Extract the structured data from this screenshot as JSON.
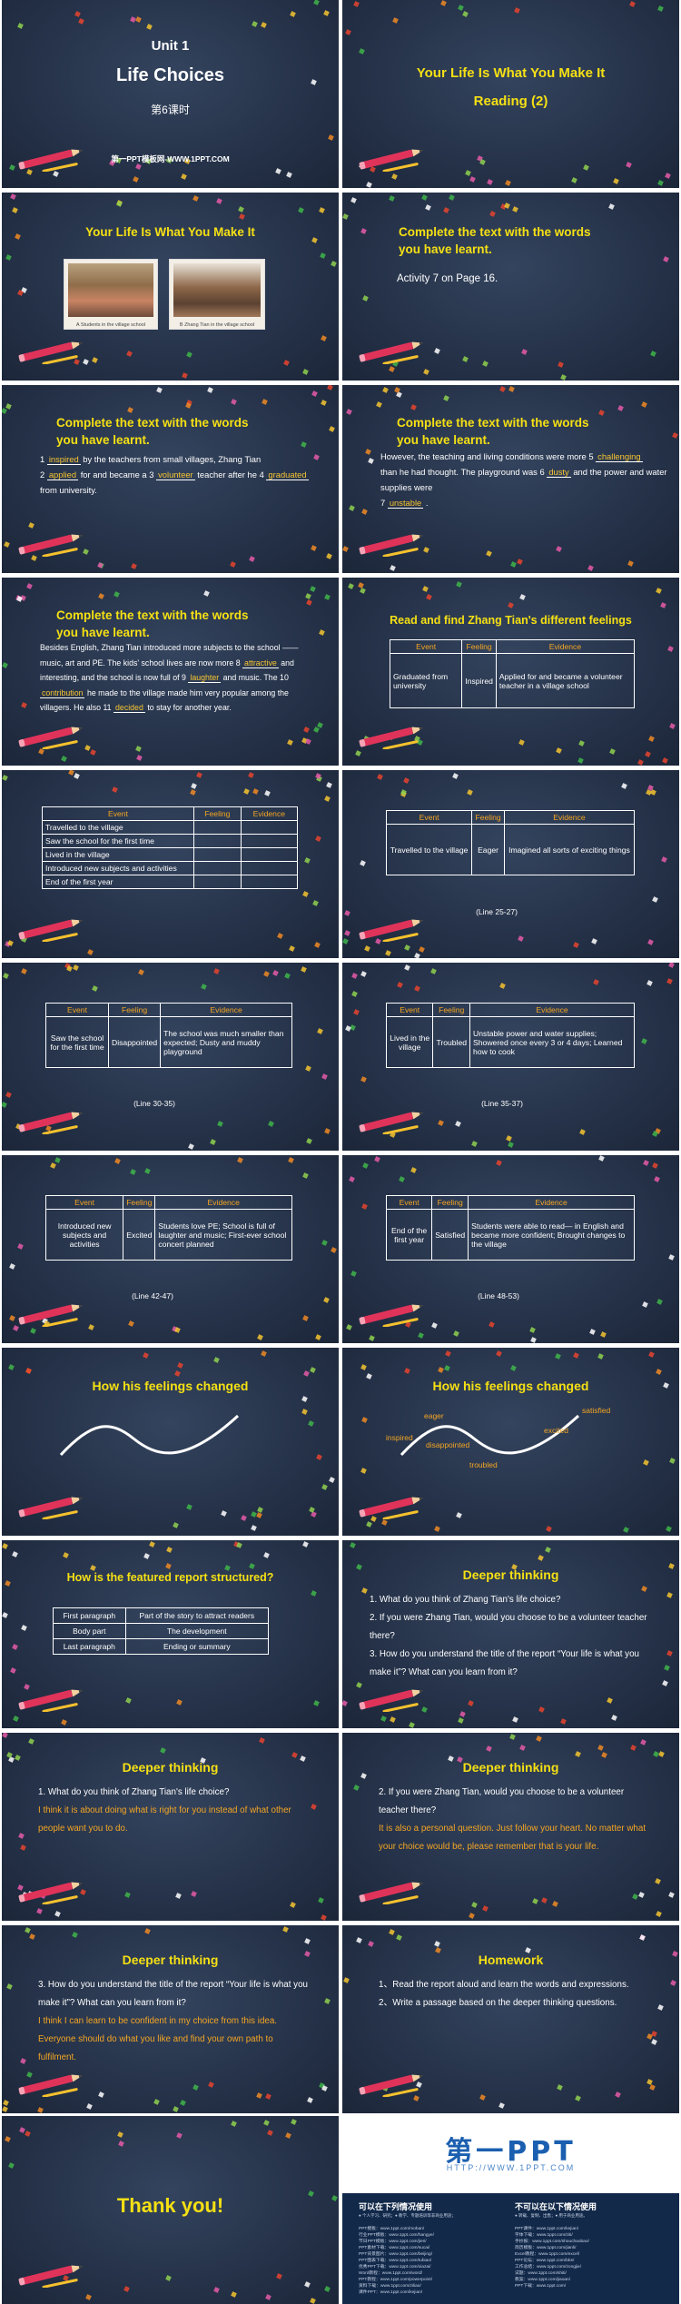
{
  "slides": {
    "s1": {
      "unit": "Unit 1",
      "title": "Life Choices",
      "subtitle": "第6课时",
      "site": "第一PPT模板网-WWW.1PPT.COM"
    },
    "s2": {
      "title_line1": "Your Life Is What You Make It",
      "title_line2": "Reading (2)"
    },
    "s3": {
      "title": "Your Life Is What You Make It",
      "photo1_caption": "A  Students in the village school",
      "photo2_caption": "B  Zhang Tian in the village school"
    },
    "s4": {
      "title_line1": "Complete the text with the words",
      "title_line2": "you have learnt.",
      "text": "Activity 7 on Page 16."
    },
    "s5": {
      "title_line1": "Complete the text with the words",
      "title_line2": "you have learnt.",
      "p1": "1",
      "a1": "inspired",
      "p2": "by the teachers from small villages, Zhang Tian",
      "p3": "2",
      "a2": "applied",
      "p4": "for and became a",
      "p5": "3",
      "a3": "volunteer",
      "p6": "teacher after he",
      "p7": "4",
      "a4": "graduated",
      "p8": "from university."
    },
    "s6": {
      "title_line1": "Complete the text with the words",
      "title_line2": "you have learnt.",
      "p1": "However, the teaching and living conditions were more",
      "p2": "5",
      "a5": "challenging",
      "p3": "than he had thought. The playground was",
      "p4": "6",
      "a6": "dusty",
      "p5": "and the power and water supplies were",
      "p6": "7",
      "a7": "unstable",
      "p7": "."
    },
    "s7": {
      "title_line1": "Complete the text with the words",
      "title_line2": "you have learnt.",
      "p1": "Besides English, Zhang Tian introduced more subjects to the school —— music, art and PE. The kids' school lives are now more",
      "p2": "8",
      "a8": "attractive",
      "p3": "and interesting, and the school is now full of",
      "p4": "9",
      "a9": "laughter",
      "p5": "and music. The",
      "p6": "10",
      "a10": "contribution",
      "p7": "he made to the village made him very popular among the villagers. He also",
      "p8": "11",
      "a11": "decided",
      "p9": "to stay for another year."
    },
    "s8": {
      "title": "Read and find Zhang Tian's different feelings",
      "headers": [
        "Event",
        "Feeling",
        "Evidence"
      ],
      "row": [
        "Graduated from university",
        "Inspired",
        "Applied for and became a volunteer teacher in a village school"
      ]
    },
    "s9": {
      "headers": [
        "Event",
        "Feeling",
        "Evidence"
      ],
      "rows": [
        "Travelled to the village",
        "Saw the school for the first time",
        "Lived in the village",
        "Introduced new subjects and activities",
        "End of the first year"
      ]
    },
    "s10": {
      "headers": [
        "Event",
        "Feeling",
        "Evidence"
      ],
      "row": [
        "Travelled to the village",
        "Eager",
        "Imagined all sorts of exciting things"
      ],
      "lines": "(Line 25-27)"
    },
    "s11": {
      "headers": [
        "Event",
        "Feeling",
        "Evidence"
      ],
      "row": [
        "Saw the school for the first time",
        "Disappointed",
        "The school was much smaller than expected; Dusty and muddy playground"
      ],
      "lines": "(Line 30-35)"
    },
    "s12": {
      "headers": [
        "Event",
        "Feeling",
        "Evidence"
      ],
      "row": [
        "Lived in the village",
        "Troubled",
        "Unstable power and water supplies; Showered once every 3 or 4 days; Learned how to cook"
      ],
      "lines": "(Line 35-37)"
    },
    "s13": {
      "headers": [
        "Event",
        "Feeling",
        "Evidence"
      ],
      "row": [
        "Introduced new subjects and activities",
        "Excited",
        "Students love PE; School is full of laughter and music; First-ever school concert planned"
      ],
      "lines": "(Line 42-47)"
    },
    "s14": {
      "headers": [
        "Event",
        "Feeling",
        "Evidence"
      ],
      "row": [
        "End of the first year",
        "Satisfied",
        "Students were able to read— in English and became more confident; Brought changes to the village"
      ],
      "lines": "(Line 48-53)"
    },
    "s15": {
      "title": "How his feelings changed"
    },
    "s16": {
      "title": "How his feelings changed",
      "labels": [
        "inspired",
        "eager",
        "disappointed",
        "troubled",
        "excited",
        "satisfied"
      ]
    },
    "s17": {
      "title": "How is the featured report structured?",
      "rows": [
        [
          "First paragraph",
          "Part of the story to attract readers"
        ],
        [
          "Body part",
          "The development"
        ],
        [
          "Last paragraph",
          "Ending or summary"
        ]
      ]
    },
    "s18": {
      "title": "Deeper thinking",
      "q1": "1.  What do you think of Zhang Tian's life choice?",
      "q2": "2.  If you were Zhang Tian, would you choose to be a volunteer teacher there?",
      "q3": "3.  How do you understand the title of the report “Your life is what you make it”? What can you learn from it?"
    },
    "s19": {
      "title": "Deeper thinking",
      "q": "1.   What do you think of Zhang Tian's life choice?",
      "a": "I think it is about doing what is right for you instead of what other people want you to do."
    },
    "s20": {
      "title": "Deeper thinking",
      "q": "2. If you were Zhang Tian, would you choose to be a volunteer teacher there?",
      "a": "It is also a personal question. Just follow your heart. No matter what your choice would be, please remember that is your life."
    },
    "s21": {
      "title": "Deeper thinking",
      "q": "3. How do you understand the title of the report “Your life is what you make it”? What can you learn from it?",
      "a": "I think I can learn to be confident in my choice from this idea. Everyone should do what you like and find your own path to fulfilment."
    },
    "s22": {
      "title": "Homework",
      "h1": "1、Read the report aloud and learn the words and expressions.",
      "h2": "2、Write a passage based on the deeper thinking questions."
    },
    "s23": {
      "text": "Thank you!"
    },
    "s24": {
      "logo": "第一PPT",
      "url": "HTTP://WWW.1PPT.COM",
      "left_head": "可以在下列情况使用",
      "left_sub": "● 个人学习、研究；● 教学、专题培训等非商业用途；",
      "right_head": "不可以在以下情况使用",
      "right_sub": "● 转载、复制、出售；● 用于商业用途。",
      "links_left": [
        "PPT模板：www.1ppt.com/moban/",
        "行业PPT模板：www.1ppt.com/hangye/",
        "节日PPT模板：www.1ppt.com/jieri/",
        "PPT素材下载：www.1ppt.com/sucai/",
        "PPT背景图片：www.1ppt.com/beijing/",
        "PPT图表下载：www.1ppt.com/tubiao/",
        "优秀PPT下载：www.1ppt.com/xiazai/",
        "Word教程：www.1ppt.com/word/",
        "PPT教程：www.1ppt.com/powerpoint/",
        "资料下载：www.1ppt.com/ziliao/",
        "课件PPT：www.1ppt.com/kejian/"
      ],
      "links_right": [
        "PPT课件：www.1ppt.com/kejian/",
        "字体下载：www.1ppt.com/ziti/",
        "手抄报：www.1ppt.com/shouchaobao/",
        "简历模板：www.1ppt.com/jianli/",
        "Excel教程：www.1ppt.com/excel/",
        "PPT论坛：www.1ppt.com/bbs/",
        "工作总结：www.1ppt.com/zongjie/",
        "试题：www.1ppt.com/shiti/",
        "教案：www.1ppt.com/jiaoan/",
        "PPT下载：www.1ppt.com/"
      ]
    }
  }
}
